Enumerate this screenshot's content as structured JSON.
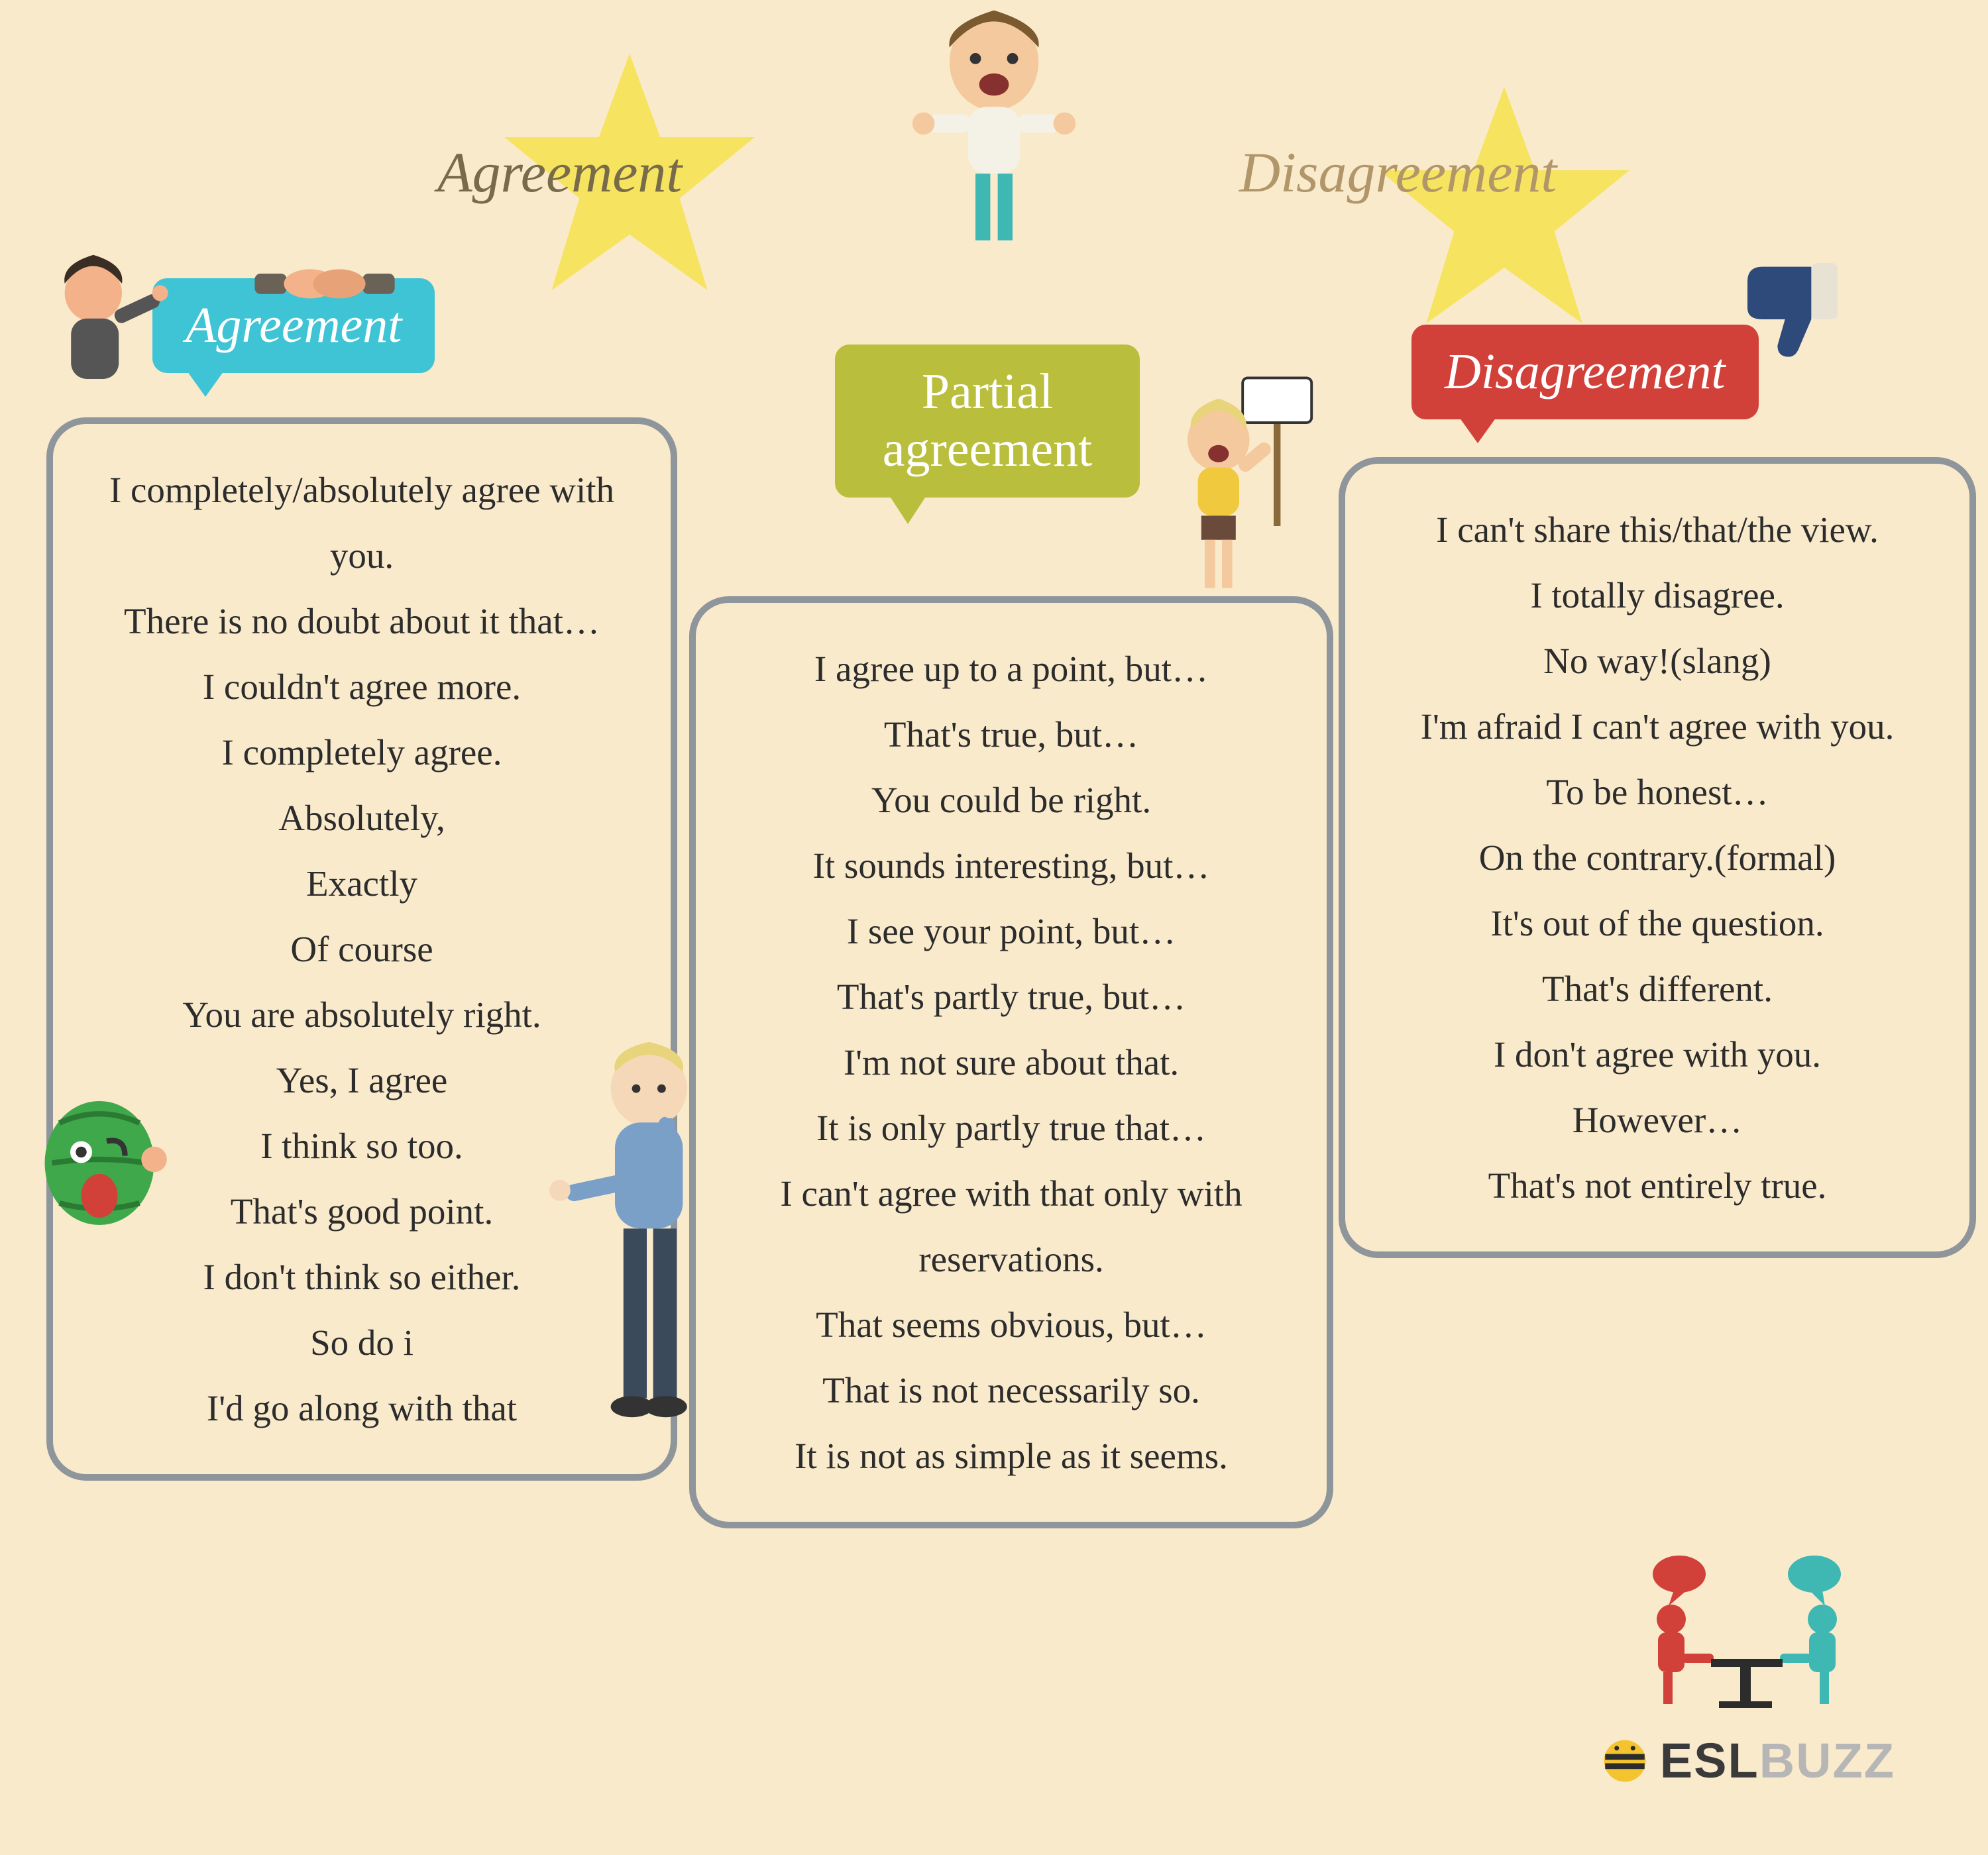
{
  "header": {
    "left_title": "Agreement",
    "left_color": "#776b4a",
    "right_title": "Disagreement",
    "right_color": "#b1966a",
    "star_color": "#f6e35f"
  },
  "bubbles": {
    "agreement": {
      "label": "Agreement",
      "bg": "#3ec4d4"
    },
    "partial": {
      "label": "Partial agreement",
      "bg": "#b9be3d"
    },
    "disagreement": {
      "label": "Disagreement",
      "bg": "#d2403a"
    }
  },
  "columns": {
    "agreement": {
      "border": "#8e959b",
      "items": [
        "I completely/absolutely agree with you.",
        "There is no doubt about it that…",
        "I couldn't agree more.",
        "I completely agree.",
        "Absolutely,",
        "Exactly",
        "Of course",
        "You are absolutely right.",
        "Yes, I agree",
        "I think so too.",
        "That's good point.",
        "I don't think so either.",
        "So do i",
        "I'd go along with that"
      ]
    },
    "partial": {
      "border": "#8e959b",
      "items": [
        "I agree up to a point, but…",
        "That's true, but…",
        "You could be right.",
        "It sounds interesting, but…",
        "I see your point, but…",
        "That's partly true, but…",
        "I'm not sure about that.",
        "It is only partly true that…",
        "I can't agree with that only with reservations.",
        "That seems obvious, but…",
        "That is not necessarily so.",
        "It is not as simple as it seems."
      ]
    },
    "disagreement": {
      "border": "#8e959b",
      "items": [
        "I can't share this/that/the view.",
        "I totally disagree.",
        "No way!(slang)",
        "I'm afraid I can't agree with you.",
        "To be honest…",
        "On the contrary.(formal)",
        "It's out of the question.",
        "That's different.",
        "I don't agree with you.",
        "However…",
        "That's not entirely true."
      ]
    }
  },
  "logo": {
    "text_dark": "ESL",
    "text_light": "BUZZ",
    "dark_color": "#3a3a3a",
    "light_color": "#b6b6b6",
    "bee_yellow": "#f4c430",
    "bee_black": "#2c2c2c",
    "talk_red": "#d2403a",
    "talk_teal": "#3fb8b3"
  },
  "icons": {
    "thumbs_down_fill": "#2d4a7a",
    "thumbs_down_cuff": "#e8e2d4",
    "handshake_skin": "#f3b28a",
    "handshake_sleeve": "#6a6256"
  }
}
